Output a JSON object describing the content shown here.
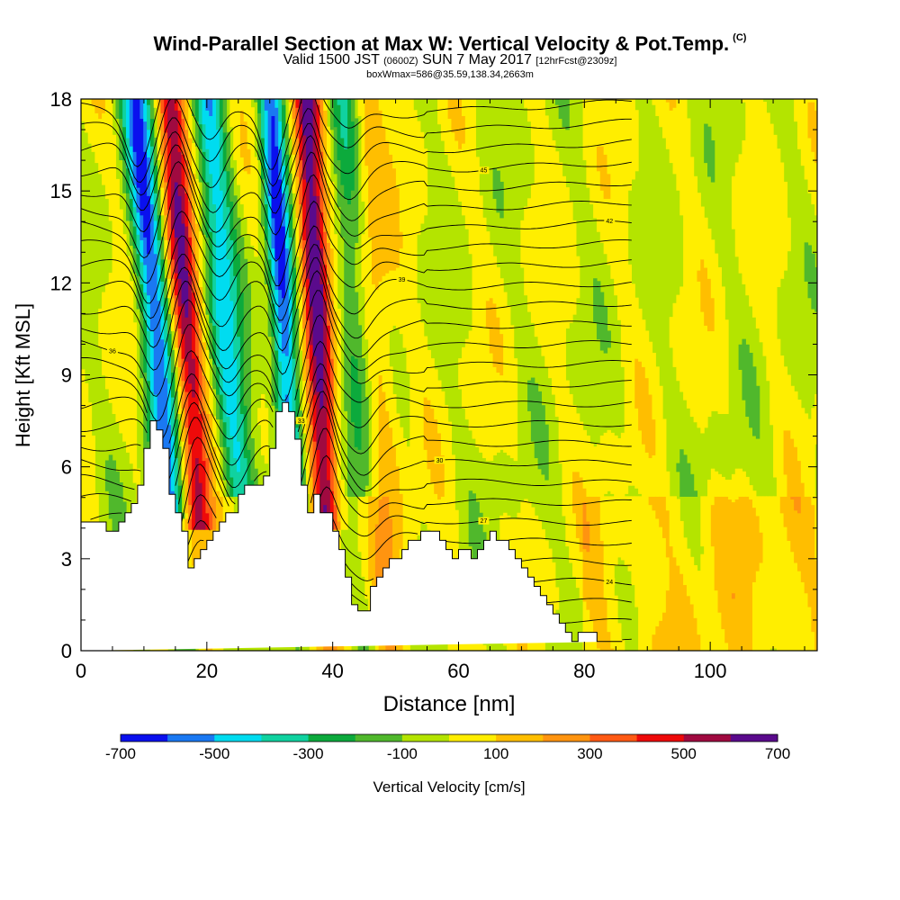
{
  "title": {
    "main": "Wind-Parallel Section at Max W: Vertical Velocity & Pot.Temp.",
    "main_tag": "(C)",
    "valid_prefix": "Valid 1500 JST",
    "valid_zulu": "(0600Z)",
    "valid_date": "SUN 7 May 2017",
    "forecast": "[12hrFcst@2309z]",
    "box": "boxWmax=586@35.59,138.34,2663m"
  },
  "chart_data": {
    "type": "heatmap",
    "xlabel": "Distance [nm]",
    "ylabel": "Height [Kft MSL]",
    "xlim": [
      0,
      117
    ],
    "ylim": [
      0,
      18
    ],
    "x_ticks": [
      0,
      20,
      40,
      60,
      80,
      100
    ],
    "y_ticks": [
      0,
      3,
      6,
      9,
      12,
      15,
      18
    ],
    "colorbar": {
      "label": "Vertical Velocity [cm/s]",
      "boundaries": [
        -700,
        -600,
        -500,
        -400,
        -300,
        -200,
        -100,
        0,
        100,
        200,
        300,
        400,
        500,
        600,
        700
      ],
      "tick_labels": [
        "-700",
        "-500",
        "-300",
        "-100",
        "100",
        "300",
        "500",
        "700"
      ],
      "colors": [
        "#0a10ee",
        "#1a78f2",
        "#00dcf0",
        "#10d2a0",
        "#0caa3c",
        "#50b82c",
        "#b4e400",
        "#ffee00",
        "#ffbe00",
        "#ff9410",
        "#ff5a14",
        "#ee0a0a",
        "#a00a40",
        "#5a0a8c"
      ],
      "background_color": "#b4e400"
    },
    "terrain_profile": {
      "x": [
        0,
        4,
        4,
        6,
        6,
        7,
        7,
        8,
        8,
        9,
        9,
        10,
        10,
        11,
        11,
        12,
        12,
        13,
        13,
        14,
        14,
        15,
        15,
        16,
        16,
        17,
        17,
        18,
        18,
        19,
        19,
        20,
        20,
        21,
        21,
        22,
        22,
        23,
        23,
        24,
        24,
        25,
        25,
        26,
        26,
        29,
        29,
        30,
        30,
        31,
        31,
        32,
        32,
        33,
        33,
        34,
        34,
        35,
        35,
        36,
        36,
        37,
        37,
        38,
        38,
        40,
        40,
        41,
        41,
        42,
        42,
        43,
        43,
        44,
        44,
        46,
        46,
        47,
        47,
        48,
        48,
        49,
        49,
        51,
        51,
        52,
        52,
        54,
        54,
        57,
        57,
        58,
        58,
        59,
        59,
        60,
        60,
        62,
        62,
        63,
        63,
        64,
        64,
        65,
        65,
        66,
        66,
        68,
        68,
        69,
        69,
        70,
        70,
        71,
        71,
        72,
        72,
        73,
        73,
        74,
        74,
        75,
        75,
        76,
        76,
        77,
        77,
        78,
        78,
        79,
        79,
        80,
        80,
        82,
        82,
        86,
        86,
        88,
        88,
        117
      ],
      "h": [
        4.2,
        4.2,
        3.9,
        3.9,
        4.2,
        4.2,
        4.5,
        4.5,
        4.8,
        4.8,
        5.4,
        5.4,
        6.6,
        6.6,
        7.5,
        7.5,
        7.2,
        7.2,
        6.6,
        6.6,
        5.1,
        5.1,
        4.5,
        4.5,
        3.9,
        3.9,
        2.7,
        2.7,
        3.0,
        3.0,
        3.3,
        3.3,
        3.6,
        3.6,
        3.9,
        3.9,
        4.2,
        4.2,
        4.5,
        4.5,
        4.5,
        4.5,
        5.1,
        5.1,
        5.4,
        5.4,
        5.7,
        5.7,
        6.6,
        6.6,
        7.8,
        7.8,
        8.1,
        8.1,
        7.8,
        7.8,
        6.9,
        6.9,
        5.4,
        5.4,
        4.5,
        4.5,
        5.1,
        5.1,
        4.5,
        4.5,
        3.9,
        3.9,
        3.3,
        3.3,
        2.4,
        2.4,
        1.5,
        1.5,
        1.3,
        1.3,
        2.1,
        2.1,
        2.4,
        2.4,
        2.7,
        2.7,
        3.0,
        3.0,
        3.3,
        3.3,
        3.6,
        3.6,
        3.9,
        3.9,
        3.6,
        3.6,
        3.3,
        3.3,
        3.0,
        3.0,
        3.3,
        3.3,
        3.0,
        3.0,
        3.3,
        3.3,
        3.6,
        3.6,
        3.9,
        3.9,
        3.6,
        3.6,
        3.3,
        3.3,
        3.0,
        3.0,
        2.7,
        2.7,
        2.4,
        2.4,
        2.1,
        2.1,
        1.8,
        1.8,
        1.5,
        1.5,
        1.2,
        1.2,
        0.9,
        0.9,
        0.6,
        0.6,
        0.3,
        0.3,
        0.6,
        0.6,
        0.6,
        0.6,
        0.3,
        0.3,
        0.3
      ]
    },
    "theta_contours_K": {
      "levels": [
        21,
        22,
        23,
        24,
        25,
        26,
        27,
        28,
        29,
        30,
        31,
        32,
        33,
        34,
        35,
        36,
        37,
        38,
        39,
        40,
        41,
        42,
        43,
        44,
        45,
        46,
        47,
        48
      ],
      "label_values": [
        "21",
        "24",
        "27",
        "30",
        "33",
        "36",
        "39",
        "42",
        "45",
        "48"
      ]
    }
  }
}
